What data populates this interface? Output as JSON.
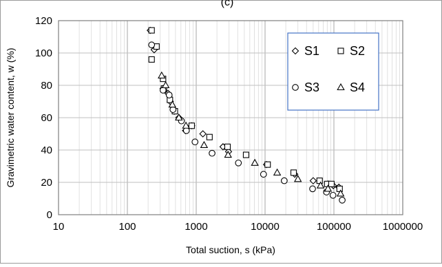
{
  "top_fragment": "(c)",
  "chart_data": {
    "type": "scatter",
    "title": "",
    "xlabel": "Total suction, s  (kPa)",
    "ylabel": "Gravimetric  water content,  w (%)",
    "x_scale": "log",
    "xlim": [
      10,
      1000000
    ],
    "ylim": [
      0,
      120
    ],
    "x_ticks": [
      10,
      100,
      1000,
      10000,
      100000,
      1000000
    ],
    "x_tick_labels": [
      "10",
      "100",
      "1000",
      "10000",
      "100000",
      "1000000"
    ],
    "y_ticks": [
      0,
      20,
      40,
      60,
      80,
      100,
      120
    ],
    "y_tick_labels": [
      "0",
      "20",
      "40",
      "60",
      "80",
      "100",
      "120"
    ],
    "grid": true,
    "legend_position": "upper-right inside plot",
    "series": [
      {
        "name": "S1",
        "marker": "diamond",
        "points": [
          [
            215,
            114
          ],
          [
            245,
            102
          ],
          [
            330,
            78
          ],
          [
            390,
            75
          ],
          [
            420,
            70
          ],
          [
            480,
            64
          ],
          [
            560,
            60
          ],
          [
            700,
            52
          ],
          [
            860,
            55
          ],
          [
            1250,
            50
          ],
          [
            2450,
            42
          ],
          [
            2950,
            39
          ],
          [
            10500,
            31
          ],
          [
            27000,
            25
          ],
          [
            50000,
            21
          ],
          [
            82000,
            19
          ],
          [
            98000,
            18
          ],
          [
            118000,
            17
          ]
        ]
      },
      {
        "name": "S2",
        "marker": "square",
        "points": [
          [
            225,
            114
          ],
          [
            225,
            96
          ],
          [
            265,
            104
          ],
          [
            330,
            84
          ],
          [
            340,
            78
          ],
          [
            415,
            71
          ],
          [
            490,
            64
          ],
          [
            860,
            55
          ],
          [
            1560,
            48
          ],
          [
            2850,
            42
          ],
          [
            5300,
            37
          ],
          [
            10900,
            31
          ],
          [
            26000,
            26
          ],
          [
            62000,
            21
          ],
          [
            80000,
            19
          ],
          [
            92000,
            19
          ],
          [
            121000,
            16
          ]
        ]
      },
      {
        "name": "S3",
        "marker": "circle",
        "points": [
          [
            225,
            105
          ],
          [
            330,
            77
          ],
          [
            405,
            74
          ],
          [
            460,
            65
          ],
          [
            610,
            58
          ],
          [
            720,
            52
          ],
          [
            960,
            45
          ],
          [
            1700,
            38
          ],
          [
            4100,
            32
          ],
          [
            9500,
            25
          ],
          [
            19000,
            21
          ],
          [
            49000,
            16
          ],
          [
            78000,
            14
          ],
          [
            97000,
            12
          ],
          [
            132000,
            9
          ]
        ]
      },
      {
        "name": "S4",
        "marker": "triangle",
        "points": [
          [
            315,
            86
          ],
          [
            360,
            80
          ],
          [
            450,
            68
          ],
          [
            560,
            60
          ],
          [
            710,
            55
          ],
          [
            1300,
            43
          ],
          [
            2900,
            37
          ],
          [
            7100,
            32
          ],
          [
            15000,
            26
          ],
          [
            30000,
            22
          ],
          [
            64000,
            18
          ],
          [
            82000,
            16
          ],
          [
            125000,
            13
          ]
        ]
      }
    ]
  }
}
